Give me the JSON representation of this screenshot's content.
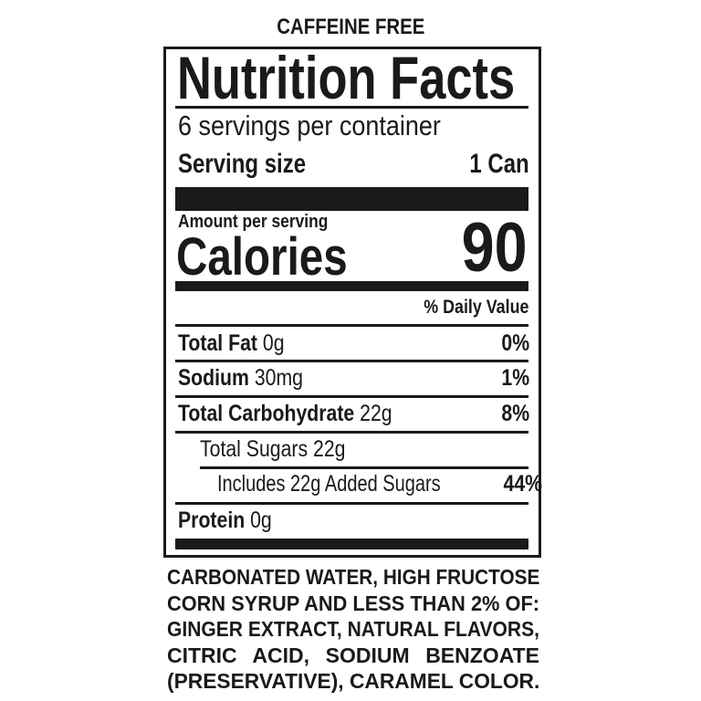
{
  "header": {
    "caffeine_note": "CAFFEINE FREE"
  },
  "label": {
    "title": "Nutrition Facts",
    "servings_per_container": "6 servings per container",
    "serving_size_label": "Serving size",
    "serving_size_value": "1 Can",
    "amount_per_serving": "Amount per serving",
    "calories_label": "Calories",
    "calories_value": "90",
    "daily_value_header": "% Daily Value",
    "nutrients": [
      {
        "name": "Total Fat",
        "amount": "0g",
        "dv": "0%"
      },
      {
        "name": "Sodium",
        "amount": "30mg",
        "dv": "1%"
      },
      {
        "name": "Total Carbohydrate",
        "amount": "22g",
        "dv": "8%"
      },
      {
        "name": "Total Sugars 22g",
        "amount": "",
        "dv": ""
      },
      {
        "name": "Includes 22g Added Sugars",
        "amount": "",
        "dv": "44%"
      },
      {
        "name": "Protein",
        "amount": "0g",
        "dv": ""
      }
    ]
  },
  "ingredients": {
    "lines": [
      "CARBONATED WATER, HIGH FRUCTOSE",
      "CORN SYRUP AND LESS THAN 2% OF:",
      "GINGER EXTRACT, NATURAL FLAVORS,",
      "CITRIC ACID, SODIUM BENZOATE",
      "(PRESERVATIVE), CARAMEL COLOR."
    ]
  }
}
